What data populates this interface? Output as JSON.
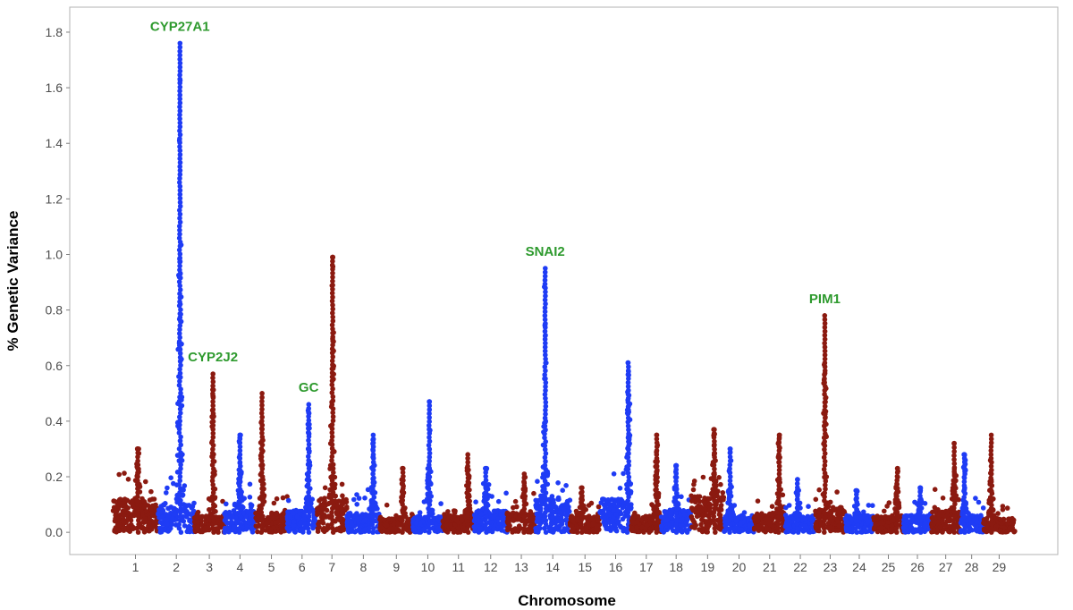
{
  "chart_data": {
    "type": "scatter",
    "subtype": "manhattan",
    "title": "",
    "xlabel": "Chromosome",
    "ylabel": "% Genetic Variance",
    "ylim": [
      -0.08,
      1.89
    ],
    "yticks": [
      0.0,
      0.2,
      0.4,
      0.6,
      0.8,
      1.0,
      1.2,
      1.4,
      1.6,
      1.8
    ],
    "ytick_labels": [
      "0.0",
      "0.2",
      "0.4",
      "0.6",
      "0.8",
      "1.0",
      "1.2",
      "1.4",
      "1.6",
      "1.8"
    ],
    "colors": {
      "odd": "#8b1a10",
      "even": "#1f3cf5",
      "label": "#2e9a2e",
      "axis_text": "#4d4d4d",
      "frame": "#b3b3b3"
    },
    "chromosomes": [
      {
        "label": "1",
        "start": 0.0,
        "end": 1.45,
        "peak": 0.3,
        "peak_pos": 0.55,
        "base": 0.12
      },
      {
        "label": "2",
        "start": 1.45,
        "end": 2.6,
        "peak": 1.76,
        "peak_pos": 0.6,
        "base": 0.1
      },
      {
        "label": "3",
        "start": 2.6,
        "end": 3.55,
        "peak": 0.57,
        "peak_pos": 0.62,
        "base": 0.06
      },
      {
        "label": "4",
        "start": 3.55,
        "end": 4.55,
        "peak": 0.35,
        "peak_pos": 0.5,
        "base": 0.08
      },
      {
        "label": "5",
        "start": 4.55,
        "end": 5.55,
        "peak": 0.5,
        "peak_pos": 0.2,
        "base": 0.07
      },
      {
        "label": "6",
        "start": 5.55,
        "end": 6.5,
        "peak": 0.46,
        "peak_pos": 0.72,
        "base": 0.08
      },
      {
        "label": "7",
        "start": 6.5,
        "end": 7.45,
        "peak": 0.99,
        "peak_pos": 0.52,
        "base": 0.12
      },
      {
        "label": "8",
        "start": 7.45,
        "end": 8.5,
        "peak": 0.35,
        "peak_pos": 0.8,
        "base": 0.07
      },
      {
        "label": "9",
        "start": 8.5,
        "end": 9.55,
        "peak": 0.23,
        "peak_pos": 0.7,
        "base": 0.05
      },
      {
        "label": "10",
        "start": 9.55,
        "end": 10.5,
        "peak": 0.47,
        "peak_pos": 0.55,
        "base": 0.06
      },
      {
        "label": "11",
        "start": 10.5,
        "end": 11.5,
        "peak": 0.28,
        "peak_pos": 0.8,
        "base": 0.06
      },
      {
        "label": "12",
        "start": 11.5,
        "end": 12.55,
        "peak": 0.23,
        "peak_pos": 0.35,
        "base": 0.08
      },
      {
        "label": "13",
        "start": 12.55,
        "end": 13.45,
        "peak": 0.21,
        "peak_pos": 0.6,
        "base": 0.07
      },
      {
        "label": "14",
        "start": 13.45,
        "end": 14.55,
        "peak": 0.95,
        "peak_pos": 0.28,
        "base": 0.12
      },
      {
        "label": "15",
        "start": 14.55,
        "end": 15.5,
        "peak": 0.16,
        "peak_pos": 0.4,
        "base": 0.06
      },
      {
        "label": "16",
        "start": 15.5,
        "end": 16.5,
        "peak": 0.61,
        "peak_pos": 0.9,
        "base": 0.12
      },
      {
        "label": "17",
        "start": 16.5,
        "end": 17.45,
        "peak": 0.35,
        "peak_pos": 0.85,
        "base": 0.06
      },
      {
        "label": "18",
        "start": 17.45,
        "end": 18.4,
        "peak": 0.24,
        "peak_pos": 0.5,
        "base": 0.08
      },
      {
        "label": "19",
        "start": 18.4,
        "end": 19.45,
        "peak": 0.37,
        "peak_pos": 0.7,
        "base": 0.13
      },
      {
        "label": "20",
        "start": 19.45,
        "end": 20.4,
        "peak": 0.3,
        "peak_pos": 0.2,
        "base": 0.06
      },
      {
        "label": "21",
        "start": 20.4,
        "end": 21.4,
        "peak": 0.35,
        "peak_pos": 0.8,
        "base": 0.07
      },
      {
        "label": "22",
        "start": 21.4,
        "end": 22.35,
        "peak": 0.19,
        "peak_pos": 0.4,
        "base": 0.06
      },
      {
        "label": "23",
        "start": 22.35,
        "end": 23.3,
        "peak": 0.78,
        "peak_pos": 0.32,
        "base": 0.09
      },
      {
        "label": "24",
        "start": 23.3,
        "end": 24.2,
        "peak": 0.15,
        "peak_pos": 0.4,
        "base": 0.06
      },
      {
        "label": "25",
        "start": 24.2,
        "end": 25.15,
        "peak": 0.23,
        "peak_pos": 0.8,
        "base": 0.06
      },
      {
        "label": "26",
        "start": 25.15,
        "end": 26.05,
        "peak": 0.16,
        "peak_pos": 0.6,
        "base": 0.06
      },
      {
        "label": "27",
        "start": 26.05,
        "end": 26.95,
        "peak": 0.32,
        "peak_pos": 0.8,
        "base": 0.08
      },
      {
        "label": "28",
        "start": 26.95,
        "end": 27.7,
        "peak": 0.28,
        "peak_pos": 0.2,
        "base": 0.06
      },
      {
        "label": "29",
        "start": 27.7,
        "end": 28.7,
        "peak": 0.35,
        "peak_pos": 0.25,
        "base": 0.05
      }
    ],
    "annotations": [
      {
        "text": "CYP27A1",
        "chromosome": "2",
        "value": 1.76
      },
      {
        "text": "CYP2J2",
        "chromosome": "3",
        "value": 0.57
      },
      {
        "text": "GC",
        "chromosome": "6",
        "value": 0.46
      },
      {
        "text": "SNAI2",
        "chromosome": "14",
        "value": 0.95
      },
      {
        "text": "PIM1",
        "chromosome": "23",
        "value": 0.78
      }
    ]
  }
}
